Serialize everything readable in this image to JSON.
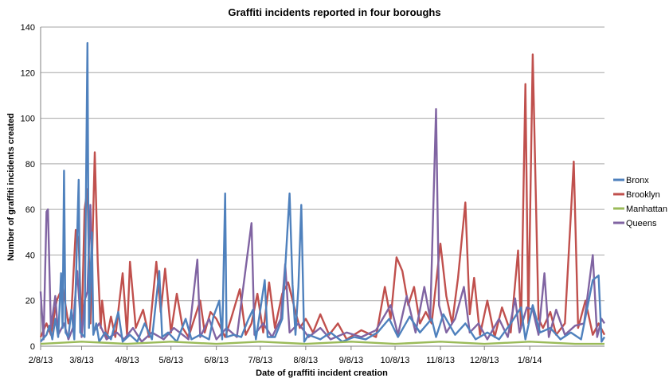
{
  "chart_data": {
    "type": "line",
    "title": "Graffiti incidents reported in four boroughs",
    "xlabel": "Date of graffiti incident creation",
    "ylabel": "Number of graffiti incidents created",
    "x_range": [
      "2013-02-08",
      "2014-02-28"
    ],
    "ylim": [
      0,
      140
    ],
    "y_ticks": [
      0,
      20,
      40,
      60,
      80,
      100,
      120,
      140
    ],
    "x_ticks": [
      {
        "label": "2/8/13",
        "date": "2013-02-08"
      },
      {
        "label": "3/8/13",
        "date": "2013-03-08"
      },
      {
        "label": "4/8/13",
        "date": "2013-04-08"
      },
      {
        "label": "5/8/13",
        "date": "2013-05-08"
      },
      {
        "label": "6/8/13",
        "date": "2013-06-08"
      },
      {
        "label": "7/8/13",
        "date": "2013-07-08"
      },
      {
        "label": "8/8/13",
        "date": "2013-08-08"
      },
      {
        "label": "9/8/13",
        "date": "2013-09-08"
      },
      {
        "label": "10/8/13",
        "date": "2013-10-08"
      },
      {
        "label": "11/8/13",
        "date": "2013-11-08"
      },
      {
        "label": "12/8/13",
        "date": "2013-12-08"
      },
      {
        "label": "1/8/14",
        "date": "2014-01-08"
      }
    ],
    "grid": true,
    "legend_position": "right",
    "series": [
      {
        "name": "Bronx",
        "color": "#4f81bd",
        "points": [
          [
            "2013-02-08",
            2
          ],
          [
            "2013-02-12",
            5
          ],
          [
            "2013-02-14",
            9
          ],
          [
            "2013-02-16",
            3
          ],
          [
            "2013-02-18",
            12
          ],
          [
            "2013-02-20",
            4
          ],
          [
            "2013-02-22",
            32
          ],
          [
            "2013-02-23",
            8
          ],
          [
            "2013-02-24",
            77
          ],
          [
            "2013-02-25",
            6
          ],
          [
            "2013-02-27",
            4
          ],
          [
            "2013-03-01",
            16
          ],
          [
            "2013-03-03",
            3
          ],
          [
            "2013-03-06",
            73
          ],
          [
            "2013-03-07",
            6
          ],
          [
            "2013-03-10",
            4
          ],
          [
            "2013-03-12",
            133
          ],
          [
            "2013-03-13",
            8
          ],
          [
            "2013-03-15",
            50
          ],
          [
            "2013-03-16",
            5
          ],
          [
            "2013-03-18",
            10
          ],
          [
            "2013-03-20",
            2
          ],
          [
            "2013-03-24",
            6
          ],
          [
            "2013-03-28",
            3
          ],
          [
            "2013-04-02",
            15
          ],
          [
            "2013-04-05",
            2
          ],
          [
            "2013-04-10",
            5
          ],
          [
            "2013-04-15",
            2
          ],
          [
            "2013-04-20",
            10
          ],
          [
            "2013-04-25",
            3
          ],
          [
            "2013-04-30",
            33
          ],
          [
            "2013-05-02",
            4
          ],
          [
            "2013-05-06",
            6
          ],
          [
            "2013-05-12",
            2
          ],
          [
            "2013-05-18",
            12
          ],
          [
            "2013-05-22",
            3
          ],
          [
            "2013-05-28",
            5
          ],
          [
            "2013-06-03",
            3
          ],
          [
            "2013-06-06",
            13
          ],
          [
            "2013-06-10",
            20
          ],
          [
            "2013-06-12",
            3
          ],
          [
            "2013-06-14",
            67
          ],
          [
            "2013-06-15",
            4
          ],
          [
            "2013-06-20",
            5
          ],
          [
            "2013-06-25",
            4
          ],
          [
            "2013-06-30",
            12
          ],
          [
            "2013-07-03",
            16
          ],
          [
            "2013-07-05",
            3
          ],
          [
            "2013-07-11",
            29
          ],
          [
            "2013-07-13",
            4
          ],
          [
            "2013-07-18",
            4
          ],
          [
            "2013-07-23",
            12
          ],
          [
            "2013-07-28",
            67
          ],
          [
            "2013-07-30",
            27
          ],
          [
            "2013-08-01",
            5
          ],
          [
            "2013-08-03",
            26
          ],
          [
            "2013-08-05",
            62
          ],
          [
            "2013-08-07",
            2
          ],
          [
            "2013-08-10",
            5
          ],
          [
            "2013-08-18",
            3
          ],
          [
            "2013-08-25",
            6
          ],
          [
            "2013-09-02",
            2
          ],
          [
            "2013-09-10",
            4
          ],
          [
            "2013-09-18",
            3
          ],
          [
            "2013-09-26",
            6
          ],
          [
            "2013-10-04",
            12
          ],
          [
            "2013-10-10",
            4
          ],
          [
            "2013-10-18",
            13
          ],
          [
            "2013-10-25",
            6
          ],
          [
            "2013-11-02",
            12
          ],
          [
            "2013-11-05",
            4
          ],
          [
            "2013-11-10",
            14
          ],
          [
            "2013-11-18",
            5
          ],
          [
            "2013-11-25",
            10
          ],
          [
            "2013-12-02",
            3
          ],
          [
            "2013-12-10",
            6
          ],
          [
            "2013-12-18",
            3
          ],
          [
            "2013-12-26",
            10
          ],
          [
            "2014-01-02",
            17
          ],
          [
            "2014-01-05",
            3
          ],
          [
            "2014-01-10",
            18
          ],
          [
            "2014-01-15",
            6
          ],
          [
            "2014-01-22",
            8
          ],
          [
            "2014-01-29",
            3
          ],
          [
            "2014-02-05",
            6
          ],
          [
            "2014-02-12",
            3
          ],
          [
            "2014-02-20",
            29
          ],
          [
            "2014-02-24",
            31
          ],
          [
            "2014-02-26",
            2
          ],
          [
            "2014-02-28",
            4
          ]
        ]
      },
      {
        "name": "Brooklyn",
        "color": "#c0504d",
        "points": [
          [
            "2013-02-08",
            4
          ],
          [
            "2013-02-12",
            10
          ],
          [
            "2013-02-15",
            5
          ],
          [
            "2013-02-19",
            20
          ],
          [
            "2013-02-23",
            26
          ],
          [
            "2013-02-27",
            10
          ],
          [
            "2013-03-01",
            14
          ],
          [
            "2013-03-04",
            51
          ],
          [
            "2013-03-06",
            46
          ],
          [
            "2013-03-08",
            6
          ],
          [
            "2013-03-10",
            60
          ],
          [
            "2013-03-12",
            69
          ],
          [
            "2013-03-14",
            10
          ],
          [
            "2013-03-17",
            85
          ],
          [
            "2013-03-19",
            37
          ],
          [
            "2013-03-21",
            8
          ],
          [
            "2013-03-22",
            20
          ],
          [
            "2013-03-25",
            3
          ],
          [
            "2013-03-28",
            13
          ],
          [
            "2013-03-31",
            4
          ],
          [
            "2013-04-05",
            32
          ],
          [
            "2013-04-08",
            5
          ],
          [
            "2013-04-10",
            37
          ],
          [
            "2013-04-14",
            8
          ],
          [
            "2013-04-19",
            16
          ],
          [
            "2013-04-23",
            4
          ],
          [
            "2013-04-28",
            37
          ],
          [
            "2013-05-01",
            15
          ],
          [
            "2013-05-04",
            34
          ],
          [
            "2013-05-08",
            6
          ],
          [
            "2013-05-12",
            23
          ],
          [
            "2013-05-16",
            8
          ],
          [
            "2013-05-20",
            4
          ],
          [
            "2013-05-28",
            20
          ],
          [
            "2013-05-31",
            6
          ],
          [
            "2013-06-04",
            15
          ],
          [
            "2013-06-08",
            12
          ],
          [
            "2013-06-14",
            4
          ],
          [
            "2013-06-18",
            12
          ],
          [
            "2013-06-24",
            25
          ],
          [
            "2013-06-28",
            5
          ],
          [
            "2013-07-02",
            10
          ],
          [
            "2013-07-06",
            23
          ],
          [
            "2013-07-10",
            6
          ],
          [
            "2013-07-14",
            28
          ],
          [
            "2013-07-18",
            8
          ],
          [
            "2013-07-23",
            23
          ],
          [
            "2013-07-27",
            28
          ],
          [
            "2013-08-01",
            15
          ],
          [
            "2013-08-04",
            8
          ],
          [
            "2013-08-08",
            12
          ],
          [
            "2013-08-13",
            6
          ],
          [
            "2013-08-18",
            14
          ],
          [
            "2013-08-24",
            5
          ],
          [
            "2013-08-30",
            10
          ],
          [
            "2013-09-05",
            3
          ],
          [
            "2013-09-15",
            7
          ],
          [
            "2013-09-25",
            4
          ],
          [
            "2013-10-01",
            26
          ],
          [
            "2013-10-05",
            12
          ],
          [
            "2013-10-09",
            39
          ],
          [
            "2013-10-13",
            33
          ],
          [
            "2013-10-17",
            18
          ],
          [
            "2013-10-21",
            26
          ],
          [
            "2013-10-25",
            10
          ],
          [
            "2013-10-29",
            15
          ],
          [
            "2013-11-02",
            10
          ],
          [
            "2013-11-08",
            45
          ],
          [
            "2013-11-12",
            22
          ],
          [
            "2013-11-16",
            10
          ],
          [
            "2013-11-20",
            30
          ],
          [
            "2013-11-25",
            63
          ],
          [
            "2013-11-28",
            14
          ],
          [
            "2013-12-01",
            30
          ],
          [
            "2013-12-05",
            5
          ],
          [
            "2013-12-10",
            20
          ],
          [
            "2013-12-15",
            4
          ],
          [
            "2013-12-20",
            17
          ],
          [
            "2013-12-26",
            6
          ],
          [
            "2013-12-31",
            42
          ],
          [
            "2014-01-02",
            8
          ],
          [
            "2014-01-05",
            115
          ],
          [
            "2014-01-07",
            10
          ],
          [
            "2014-01-10",
            128
          ],
          [
            "2014-01-12",
            69
          ],
          [
            "2014-01-14",
            12
          ],
          [
            "2014-01-17",
            8
          ],
          [
            "2014-01-22",
            15
          ],
          [
            "2014-01-26",
            5
          ],
          [
            "2014-02-01",
            10
          ],
          [
            "2014-02-07",
            81
          ],
          [
            "2014-02-10",
            8
          ],
          [
            "2014-02-15",
            20
          ],
          [
            "2014-02-20",
            5
          ],
          [
            "2014-02-24",
            10
          ],
          [
            "2014-02-28",
            5
          ]
        ]
      },
      {
        "name": "Manhattan",
        "color": "#9bbb59",
        "points": [
          [
            "2013-02-08",
            1
          ],
          [
            "2013-03-08",
            2
          ],
          [
            "2013-04-08",
            1
          ],
          [
            "2013-05-08",
            2
          ],
          [
            "2013-06-08",
            1
          ],
          [
            "2013-07-08",
            2
          ],
          [
            "2013-08-08",
            1
          ],
          [
            "2013-09-08",
            2
          ],
          [
            "2013-10-08",
            1
          ],
          [
            "2013-11-08",
            2
          ],
          [
            "2013-12-08",
            1
          ],
          [
            "2014-01-08",
            2
          ],
          [
            "2014-02-08",
            1
          ],
          [
            "2014-02-28",
            1
          ]
        ]
      },
      {
        "name": "Queens",
        "color": "#8064a2",
        "points": [
          [
            "2013-02-08",
            24
          ],
          [
            "2013-02-10",
            3
          ],
          [
            "2013-02-12",
            59
          ],
          [
            "2013-02-13",
            60
          ],
          [
            "2013-02-15",
            8
          ],
          [
            "2013-02-18",
            22
          ],
          [
            "2013-02-20",
            5
          ],
          [
            "2013-02-24",
            10
          ],
          [
            "2013-02-27",
            3
          ],
          [
            "2013-03-02",
            8
          ],
          [
            "2013-03-05",
            33
          ],
          [
            "2013-03-08",
            4
          ],
          [
            "2013-03-10",
            20
          ],
          [
            "2013-03-12",
            24
          ],
          [
            "2013-03-14",
            62
          ],
          [
            "2013-03-16",
            6
          ],
          [
            "2013-03-20",
            10
          ],
          [
            "2013-03-25",
            3
          ],
          [
            "2013-04-01",
            6
          ],
          [
            "2013-04-06",
            3
          ],
          [
            "2013-04-12",
            8
          ],
          [
            "2013-04-18",
            2
          ],
          [
            "2013-04-25",
            6
          ],
          [
            "2013-05-03",
            3
          ],
          [
            "2013-05-10",
            8
          ],
          [
            "2013-05-20",
            3
          ],
          [
            "2013-05-26",
            38
          ],
          [
            "2013-05-28",
            4
          ],
          [
            "2013-06-03",
            12
          ],
          [
            "2013-06-08",
            3
          ],
          [
            "2013-06-15",
            8
          ],
          [
            "2013-06-22",
            4
          ],
          [
            "2013-07-02",
            54
          ],
          [
            "2013-07-04",
            5
          ],
          [
            "2013-07-10",
            10
          ],
          [
            "2013-07-16",
            4
          ],
          [
            "2013-07-22",
            12
          ],
          [
            "2013-07-25",
            36
          ],
          [
            "2013-07-28",
            6
          ],
          [
            "2013-08-03",
            10
          ],
          [
            "2013-08-10",
            4
          ],
          [
            "2013-08-18",
            8
          ],
          [
            "2013-08-25",
            3
          ],
          [
            "2013-09-05",
            6
          ],
          [
            "2013-09-15",
            4
          ],
          [
            "2013-09-25",
            7
          ],
          [
            "2013-10-05",
            18
          ],
          [
            "2013-10-10",
            5
          ],
          [
            "2013-10-16",
            22
          ],
          [
            "2013-10-22",
            6
          ],
          [
            "2013-10-28",
            26
          ],
          [
            "2013-11-01",
            12
          ],
          [
            "2013-11-05",
            104
          ],
          [
            "2013-11-07",
            18
          ],
          [
            "2013-11-12",
            6
          ],
          [
            "2013-11-18",
            12
          ],
          [
            "2013-11-24",
            26
          ],
          [
            "2013-11-28",
            6
          ],
          [
            "2013-12-04",
            10
          ],
          [
            "2013-12-10",
            3
          ],
          [
            "2013-12-18",
            12
          ],
          [
            "2013-12-24",
            4
          ],
          [
            "2013-12-29",
            21
          ],
          [
            "2014-01-01",
            6
          ],
          [
            "2014-01-06",
            17
          ],
          [
            "2014-01-10",
            16
          ],
          [
            "2014-01-14",
            5
          ],
          [
            "2014-01-18",
            32
          ],
          [
            "2014-01-21",
            4
          ],
          [
            "2014-01-26",
            16
          ],
          [
            "2014-02-01",
            5
          ],
          [
            "2014-02-08",
            9
          ],
          [
            "2014-02-14",
            10
          ],
          [
            "2014-02-20",
            40
          ],
          [
            "2014-02-23",
            4
          ],
          [
            "2014-02-26",
            12
          ],
          [
            "2014-02-28",
            10
          ]
        ]
      }
    ]
  }
}
